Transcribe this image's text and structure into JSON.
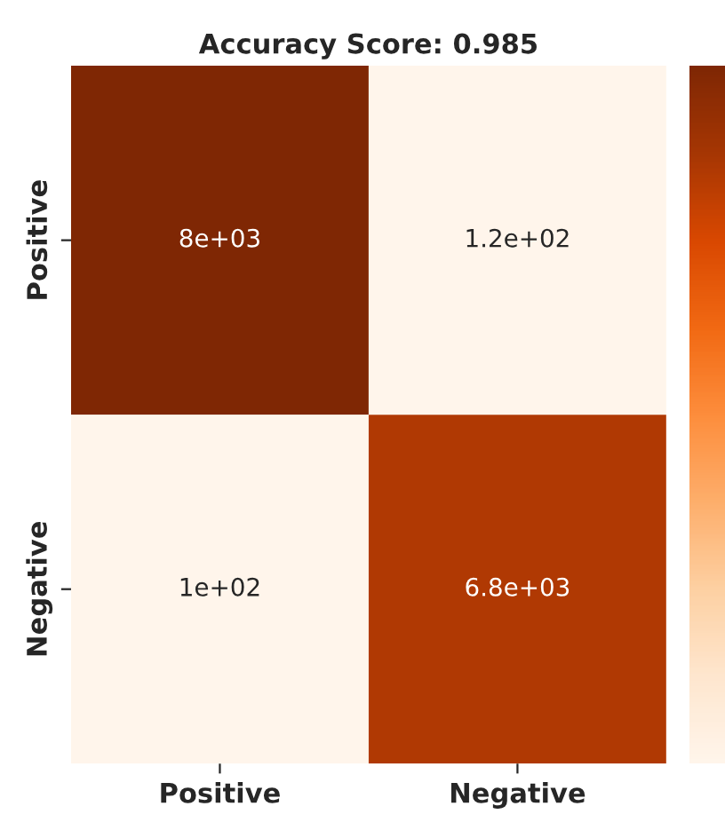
{
  "chart_data": {
    "type": "heatmap",
    "title": "Accuracy Score: 0.985",
    "categories": [
      "Positive",
      "Negative"
    ],
    "y_categories": [
      "Positive",
      "Negative"
    ],
    "cells": [
      [
        8000,
        120
      ],
      [
        100,
        6800
      ]
    ],
    "cell_labels": [
      [
        "8e+03",
        "1.2e+02"
      ],
      [
        "1e+02",
        "6.8e+03"
      ]
    ]
  }
}
